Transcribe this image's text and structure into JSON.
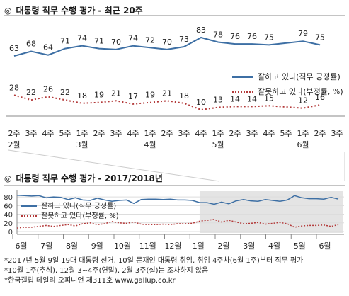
{
  "chart_top": {
    "title_mark": "◎",
    "title": "대통령 직무 수행 평가 - 최근 20주"
  },
  "chart_bottom": {
    "title_mark": "◎",
    "title": "대통령 직무 수행 평가 - 2017/2018년"
  },
  "notes": [
    "*2017년 5월 9일 19대 대통령 선거, 10일 문재인 대통령 취임, 취임 4주차(6월 1주)부터 직무 평가",
    "*10월 1주(추석), 12월 3~4주(연말), 2월 3주(설)는 조사하지 않음",
    "*한국갤럽 데일리 오피니언 제311호 www.gallup.co.kr"
  ],
  "colors": {
    "positive": "#3d6fa4",
    "negative": "#b33a3a",
    "highlight": "#e4e4e4"
  },
  "chart_data": [
    {
      "type": "line",
      "categories": [
        "2주",
        "3주",
        "4주",
        "5주",
        "1주",
        "2주",
        "3주",
        "4주",
        "1주",
        "2주",
        "3주",
        "4주",
        "1주",
        "2주",
        "3주",
        "4주",
        "5주",
        "1주",
        "2주",
        "3주"
      ],
      "month_labels": [
        "2월",
        "",
        "",
        "",
        "3월",
        "",
        "",
        "",
        "4월",
        "",
        "",
        "",
        "5월",
        "",
        "",
        "",
        "",
        "6월",
        "",
        ""
      ],
      "series": [
        {
          "name": "잘하고 있다(직무 긍정률)",
          "values": [
            63,
            68,
            64,
            71,
            74,
            71,
            70,
            74,
            72,
            70,
            73,
            83,
            78,
            76,
            76,
            75,
            null,
            79,
            75,
            null
          ]
        },
        {
          "name": "잘못하고 있다(부정률, %)",
          "values": [
            28,
            22,
            26,
            22,
            18,
            19,
            21,
            17,
            19,
            21,
            18,
            10,
            13,
            14,
            14,
            15,
            null,
            12,
            16,
            null
          ]
        }
      ],
      "legend_position": "right"
    },
    {
      "type": "line",
      "x_labels": [
        "6월",
        "7월",
        "8월",
        "9월",
        "10월",
        "11월",
        "12월",
        "1월",
        "2월",
        "3월",
        "4월",
        "5월",
        "6월"
      ],
      "y_ticks": [
        0,
        20,
        40,
        60,
        80
      ],
      "ylim": [
        0,
        90
      ],
      "series": [
        {
          "name": "잘하고 있다(직무 긍정률)",
          "values": [
            84,
            83,
            82,
            83,
            78,
            80,
            79,
            74,
            78,
            73,
            72,
            77,
            73,
            70,
            72,
            73,
            65,
            74,
            75,
            75,
            74,
            75,
            73,
            73,
            72,
            67,
            67,
            63,
            68,
            64,
            71,
            74,
            71,
            70,
            74,
            72,
            70,
            73,
            83,
            78,
            76,
            76,
            75,
            79,
            75
          ]
        },
        {
          "name": "잘못하고 있다(부정률, %)",
          "values": [
            8,
            10,
            10,
            12,
            14,
            12,
            14,
            16,
            13,
            18,
            20,
            16,
            18,
            23,
            20,
            19,
            22,
            17,
            16,
            16,
            17,
            16,
            18,
            18,
            19,
            24,
            26,
            28,
            22,
            26,
            22,
            18,
            19,
            21,
            17,
            19,
            21,
            18,
            10,
            13,
            14,
            14,
            15,
            12,
            16
          ]
        }
      ],
      "legend_position": "top-left"
    }
  ]
}
